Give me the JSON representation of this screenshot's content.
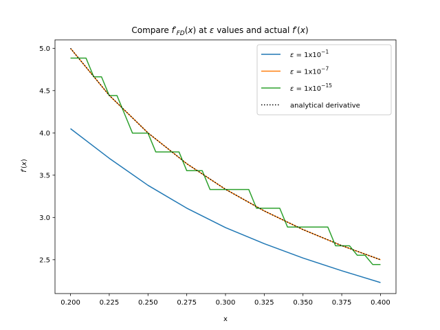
{
  "chart_data": {
    "type": "line",
    "title": "Compare f'_FD(x) at ε values and actual f'(x)",
    "xlabel": "x",
    "ylabel": "f'(x)",
    "xlim": [
      0.19,
      0.41
    ],
    "ylim": [
      2.1,
      5.1
    ],
    "xticks": [
      0.2,
      0.225,
      0.25,
      0.275,
      0.3,
      0.325,
      0.35,
      0.375,
      0.4
    ],
    "xtick_labels": [
      "0.200",
      "0.225",
      "0.250",
      "0.275",
      "0.300",
      "0.325",
      "0.350",
      "0.375",
      "0.400"
    ],
    "yticks": [
      2.5,
      3.0,
      3.5,
      4.0,
      4.5,
      5.0
    ],
    "ytick_labels": [
      "2.5",
      "3.0",
      "3.5",
      "4.0",
      "4.5",
      "5.0"
    ],
    "legend_position": "top-right",
    "series": [
      {
        "name": "ε = 1x10^-1",
        "legend_base": "ε = 1x10",
        "legend_exp": "−1",
        "color": "#1f77b4",
        "style": "solid",
        "x": [
          0.2,
          0.225,
          0.25,
          0.275,
          0.3,
          0.325,
          0.35,
          0.375,
          0.4
        ],
        "y": [
          4.05,
          3.7,
          3.38,
          3.11,
          2.88,
          2.69,
          2.52,
          2.37,
          2.23
        ]
      },
      {
        "name": "ε = 1x10^-7",
        "legend_base": "ε = 1x10",
        "legend_exp": "−7",
        "color": "#ff7f0e",
        "style": "solid",
        "x": [
          0.2,
          0.225,
          0.25,
          0.275,
          0.3,
          0.325,
          0.35,
          0.375,
          0.4
        ],
        "y": [
          5.0,
          4.444,
          4.0,
          3.636,
          3.333,
          3.077,
          2.857,
          2.667,
          2.5
        ]
      },
      {
        "name": "ε = 1x10^-15",
        "legend_base": "ε = 1x10",
        "legend_exp": "−15",
        "color": "#2ca02c",
        "style": "solid",
        "x": [
          0.2,
          0.21,
          0.215,
          0.22,
          0.225,
          0.23,
          0.235,
          0.24,
          0.25,
          0.255,
          0.27,
          0.275,
          0.285,
          0.29,
          0.315,
          0.32,
          0.335,
          0.34,
          0.366,
          0.371,
          0.38,
          0.385,
          0.39,
          0.395,
          0.4
        ],
        "y": [
          4.885,
          4.885,
          4.663,
          4.663,
          4.441,
          4.441,
          4.219,
          3.997,
          3.997,
          3.775,
          3.775,
          3.553,
          3.553,
          3.331,
          3.331,
          3.109,
          3.109,
          2.887,
          2.887,
          2.665,
          2.665,
          2.553,
          2.553,
          2.443,
          2.443
        ]
      },
      {
        "name": "analytical derivative",
        "legend_base": "analytical derivative",
        "legend_exp": "",
        "color": "#000000",
        "style": "dotted",
        "x": [
          0.2,
          0.225,
          0.25,
          0.275,
          0.3,
          0.325,
          0.35,
          0.375,
          0.4
        ],
        "y": [
          5.0,
          4.444,
          4.0,
          3.636,
          3.333,
          3.077,
          2.857,
          2.667,
          2.5
        ]
      }
    ]
  }
}
